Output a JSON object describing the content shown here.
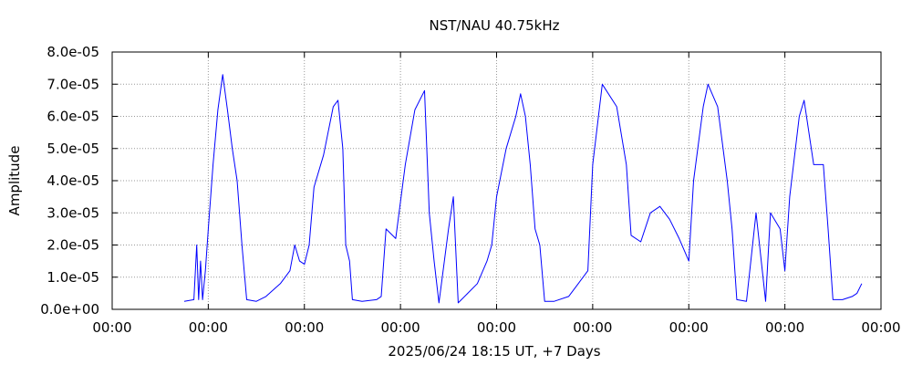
{
  "chart_data": {
    "type": "line",
    "title": "NST/NAU 40.75kHz",
    "xlabel": "2025/06/24 18:15 UT, +7 Days",
    "ylabel": "Amplitude",
    "xlim": [
      0,
      8
    ],
    "ylim": [
      0,
      8e-05
    ],
    "x_unit": "days",
    "x_tick_labels": [
      "00:00",
      "00:00",
      "00:00",
      "00:00",
      "00:00",
      "00:00",
      "00:00",
      "00:00",
      "00:00"
    ],
    "y_tick_labels": [
      "0.0e+00",
      "1.0e-05",
      "2.0e-05",
      "3.0e-05",
      "4.0e-05",
      "5.0e-05",
      "6.0e-05",
      "7.0e-05",
      "8.0e-05"
    ],
    "grid": true,
    "series": [
      {
        "color": "#0000ff",
        "points": [
          [
            0.75,
            2.5e-06
          ],
          [
            0.85,
            3e-06
          ],
          [
            0.88,
            2e-05
          ],
          [
            0.9,
            3e-06
          ],
          [
            0.92,
            1.5e-05
          ],
          [
            0.94,
            3e-06
          ],
          [
            0.97,
            1.2e-05
          ],
          [
            1.0,
            2.5e-05
          ],
          [
            1.05,
            4.5e-05
          ],
          [
            1.1,
            6.2e-05
          ],
          [
            1.15,
            7.3e-05
          ],
          [
            1.2,
            6.2e-05
          ],
          [
            1.25,
            5e-05
          ],
          [
            1.3,
            4e-05
          ],
          [
            1.35,
            2e-05
          ],
          [
            1.4,
            3e-06
          ],
          [
            1.5,
            2.5e-06
          ],
          [
            1.6,
            4e-06
          ],
          [
            1.75,
            8e-06
          ],
          [
            1.85,
            1.2e-05
          ],
          [
            1.9,
            2e-05
          ],
          [
            1.95,
            1.5e-05
          ],
          [
            2.0,
            1.4e-05
          ],
          [
            2.05,
            2e-05
          ],
          [
            2.1,
            3.8e-05
          ],
          [
            2.2,
            4.8e-05
          ],
          [
            2.3,
            6.3e-05
          ],
          [
            2.35,
            6.5e-05
          ],
          [
            2.4,
            5e-05
          ],
          [
            2.43,
            2e-05
          ],
          [
            2.47,
            1.5e-05
          ],
          [
            2.5,
            3e-06
          ],
          [
            2.6,
            2.5e-06
          ],
          [
            2.75,
            3e-06
          ],
          [
            2.8,
            4e-06
          ],
          [
            2.85,
            2.5e-05
          ],
          [
            2.95,
            2.2e-05
          ],
          [
            3.05,
            4.5e-05
          ],
          [
            3.15,
            6.2e-05
          ],
          [
            3.25,
            6.8e-05
          ],
          [
            3.3,
            3e-05
          ],
          [
            3.35,
            1.5e-05
          ],
          [
            3.4,
            2e-06
          ],
          [
            3.5,
            2.5e-05
          ],
          [
            3.55,
            3.5e-05
          ],
          [
            3.6,
            2e-06
          ],
          [
            3.7,
            5e-06
          ],
          [
            3.8,
            8e-06
          ],
          [
            3.9,
            1.5e-05
          ],
          [
            3.95,
            2e-05
          ],
          [
            4.0,
            3.5e-05
          ],
          [
            4.1,
            5e-05
          ],
          [
            4.2,
            6e-05
          ],
          [
            4.25,
            6.7e-05
          ],
          [
            4.3,
            6e-05
          ],
          [
            4.35,
            4.5e-05
          ],
          [
            4.4,
            2.5e-05
          ],
          [
            4.45,
            2e-05
          ],
          [
            4.5,
            2.5e-06
          ],
          [
            4.6,
            2.5e-06
          ],
          [
            4.75,
            4e-06
          ],
          [
            4.85,
            8e-06
          ],
          [
            4.95,
            1.2e-05
          ],
          [
            5.0,
            4.5e-05
          ],
          [
            5.1,
            7e-05
          ],
          [
            5.25,
            6.3e-05
          ],
          [
            5.35,
            4.5e-05
          ],
          [
            5.4,
            2.3e-05
          ],
          [
            5.5,
            2.1e-05
          ],
          [
            5.6,
            3e-05
          ],
          [
            5.7,
            3.2e-05
          ],
          [
            5.8,
            2.8e-05
          ],
          [
            5.9,
            2.2e-05
          ],
          [
            6.0,
            1.5e-05
          ],
          [
            6.05,
            4e-05
          ],
          [
            6.15,
            6.3e-05
          ],
          [
            6.2,
            7e-05
          ],
          [
            6.3,
            6.3e-05
          ],
          [
            6.4,
            4e-05
          ],
          [
            6.45,
            2.5e-05
          ],
          [
            6.5,
            3e-06
          ],
          [
            6.6,
            2.5e-06
          ],
          [
            6.7,
            3e-05
          ],
          [
            6.8,
            2.5e-06
          ],
          [
            6.85,
            3e-05
          ],
          [
            6.95,
            2.5e-05
          ],
          [
            7.0,
            1.2e-05
          ],
          [
            7.05,
            3.5e-05
          ],
          [
            7.15,
            6e-05
          ],
          [
            7.2,
            6.5e-05
          ],
          [
            7.3,
            4.5e-05
          ],
          [
            7.4,
            4.5e-05
          ],
          [
            7.45,
            2.5e-05
          ],
          [
            7.5,
            3e-06
          ],
          [
            7.6,
            3e-06
          ],
          [
            7.7,
            4e-06
          ],
          [
            7.75,
            5e-06
          ],
          [
            7.8,
            8e-06
          ]
        ]
      }
    ]
  }
}
